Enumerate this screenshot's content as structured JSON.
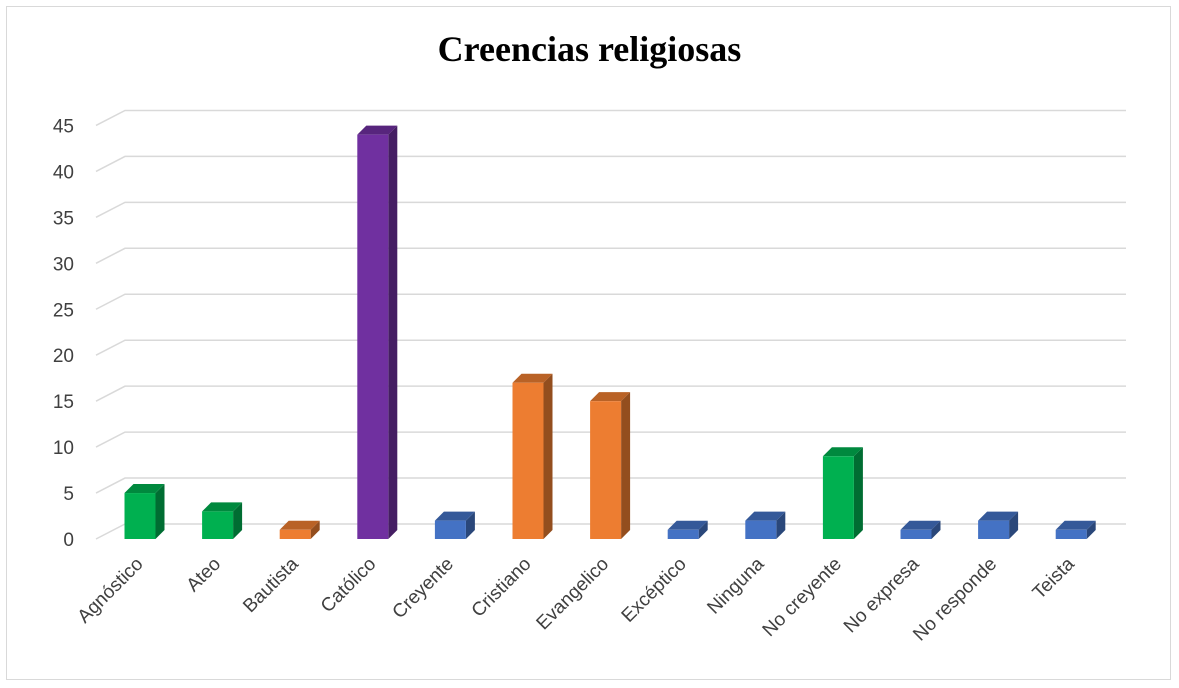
{
  "chart_data": {
    "type": "bar",
    "title": "Creencias religiosas",
    "categories": [
      "Agnóstico",
      "Ateo",
      "Bautista",
      "Católico",
      "Creyente",
      "Cristiano",
      "Evangelico",
      "Excéptico",
      "Ninguna",
      "No creyente",
      "No expresa",
      "No responde",
      "Teista"
    ],
    "values": [
      5,
      3,
      1,
      44,
      2,
      17,
      15,
      1,
      2,
      9,
      1,
      2,
      1
    ],
    "bar_colors": [
      "#00b050",
      "#00b050",
      "#ed7d31",
      "#7030a0",
      "#4472c4",
      "#ed7d31",
      "#ed7d31",
      "#4472c4",
      "#4472c4",
      "#00b050",
      "#4472c4",
      "#4472c4",
      "#4472c4"
    ],
    "y_ticks": [
      0,
      5,
      10,
      15,
      20,
      25,
      30,
      35,
      40,
      45
    ],
    "ylim": [
      0,
      45
    ],
    "xlabel": "",
    "ylabel": "",
    "grid": true,
    "legend": "none",
    "style": "3d-column"
  }
}
